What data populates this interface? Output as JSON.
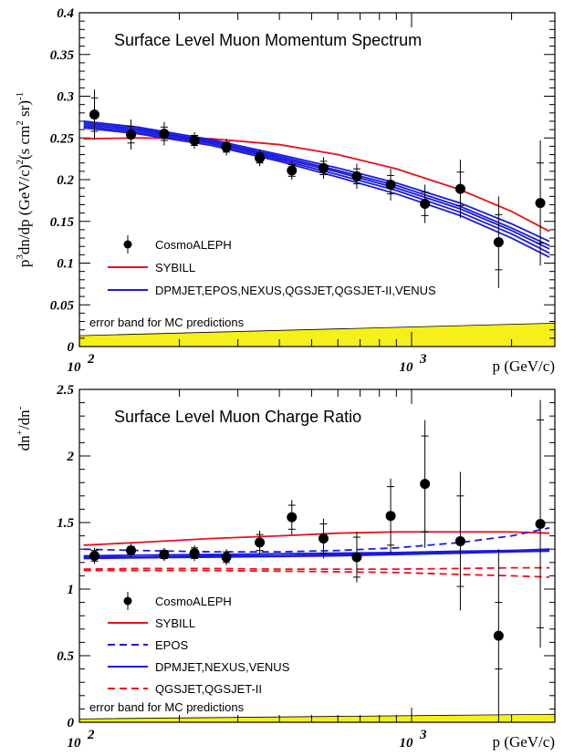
{
  "colors": {
    "data": "#000000",
    "sybill": "#e8101a",
    "blue": "#1a1adf",
    "band": "#f5ef1a"
  },
  "chart_data": [
    {
      "type": "scatter",
      "title": "Surface Level Muon Momentum Spectrum",
      "ylabel_lines": [
        "p",
        "3",
        "dn/dp (GeV/c)",
        "2",
        "(s cm",
        "2",
        " sr)",
        "-1"
      ],
      "xlabel": "p (GeV/c)",
      "xscale": "log",
      "xlim": [
        100,
        2700
      ],
      "ylim": [
        0,
        0.4
      ],
      "yticks": [
        {
          "v": 0,
          "label": "0"
        },
        {
          "v": 0.05,
          "label": "0.05"
        },
        {
          "v": 0.1,
          "label": "0.1"
        },
        {
          "v": 0.15,
          "label": "0.15"
        },
        {
          "v": 0.2,
          "label": "0.2"
        },
        {
          "v": 0.25,
          "label": "0.25"
        },
        {
          "v": 0.3,
          "label": "0.3"
        },
        {
          "v": 0.35,
          "label": "0.35"
        },
        {
          "v": 0.4,
          "label": "0.4"
        }
      ],
      "xticks": [
        {
          "v": 100,
          "base": "10",
          "exp": "2"
        },
        {
          "v": 1000,
          "base": "10",
          "exp": "3"
        }
      ],
      "band_label": "error band for MC predictions",
      "band": {
        "x": [
          100,
          2700
        ],
        "y0": [
          0,
          0
        ],
        "y1": [
          0.013,
          0.028
        ]
      },
      "legend": [
        {
          "label": "CosmoALEPH",
          "kind": "data"
        },
        {
          "label": "SYBILL",
          "kind": "line",
          "color": "#e8101a",
          "dash": false
        },
        {
          "label": "DPMJET,EPOS,NEXUS,QGSJET,QGSJET-II,VENUS",
          "kind": "line",
          "color": "#1a1adf",
          "dash": false
        }
      ],
      "points": {
        "x": [
          111,
          143,
          180,
          222,
          277,
          349,
          436,
          543,
          684,
          865,
          1097,
          1402,
          1828,
          2441
        ],
        "y": [
          0.278,
          0.254,
          0.255,
          0.247,
          0.239,
          0.226,
          0.211,
          0.214,
          0.204,
          0.194,
          0.171,
          0.189,
          0.125,
          0.172
        ],
        "err_stat": [
          0.02,
          0.01,
          0.008,
          0.006,
          0.006,
          0.006,
          0.007,
          0.008,
          0.009,
          0.011,
          0.014,
          0.02,
          0.033,
          0.048
        ],
        "err_tot": [
          0.03,
          0.018,
          0.014,
          0.01,
          0.01,
          0.01,
          0.011,
          0.013,
          0.015,
          0.019,
          0.023,
          0.035,
          0.055,
          0.075
        ]
      },
      "series": [
        {
          "name": "SYBILL",
          "color": "#e8101a",
          "dash": false,
          "x": [
            103,
            150,
            250,
            400,
            600,
            900,
            1400,
            2000,
            2600
          ],
          "y": [
            0.249,
            0.25,
            0.249,
            0.242,
            0.23,
            0.213,
            0.188,
            0.162,
            0.138
          ]
        },
        {
          "name": "",
          "color": "#1a1adf",
          "dash": false,
          "x": [
            103,
            150,
            250,
            400,
            600,
            900,
            1400,
            2000,
            2600
          ],
          "y": [
            0.27,
            0.263,
            0.248,
            0.23,
            0.214,
            0.196,
            0.172,
            0.147,
            0.126
          ]
        },
        {
          "name": "",
          "color": "#1a1adf",
          "dash": false,
          "x": [
            103,
            150,
            250,
            400,
            600,
            900,
            1400,
            2000,
            2600
          ],
          "y": [
            0.268,
            0.261,
            0.246,
            0.228,
            0.211,
            0.193,
            0.168,
            0.142,
            0.121
          ]
        },
        {
          "name": "",
          "color": "#1a1adf",
          "dash": false,
          "x": [
            103,
            150,
            250,
            400,
            600,
            900,
            1400,
            2000,
            2600
          ],
          "y": [
            0.266,
            0.259,
            0.245,
            0.226,
            0.209,
            0.19,
            0.165,
            0.139,
            0.117
          ]
        },
        {
          "name": "",
          "color": "#1a1adf",
          "dash": false,
          "x": [
            103,
            150,
            250,
            400,
            600,
            900,
            1400,
            2000,
            2600
          ],
          "y": [
            0.264,
            0.257,
            0.243,
            0.224,
            0.206,
            0.187,
            0.161,
            0.135,
            0.112
          ]
        },
        {
          "name": "",
          "color": "#1a1adf",
          "dash": false,
          "x": [
            103,
            150,
            250,
            400,
            600,
            900,
            1400,
            2000,
            2600
          ],
          "y": [
            0.262,
            0.255,
            0.241,
            0.222,
            0.203,
            0.183,
            0.157,
            0.13,
            0.107
          ]
        }
      ]
    },
    {
      "type": "scatter",
      "title": "Surface Level Muon Charge Ratio",
      "ylabel_lines": [
        "dn",
        "+",
        "/dn",
        "-"
      ],
      "xlabel": "p (GeV/c)",
      "xscale": "log",
      "xlim": [
        100,
        2700
      ],
      "ylim": [
        0,
        2.5
      ],
      "yticks": [
        {
          "v": 0,
          "label": "0"
        },
        {
          "v": 0.5,
          "label": "0.5"
        },
        {
          "v": 1,
          "label": "1"
        },
        {
          "v": 1.5,
          "label": "1.5"
        },
        {
          "v": 2,
          "label": "2"
        },
        {
          "v": 2.5,
          "label": "2.5"
        }
      ],
      "xticks": [
        {
          "v": 100,
          "base": "10",
          "exp": "2"
        },
        {
          "v": 1000,
          "base": "10",
          "exp": "3"
        }
      ],
      "band_label": "error band for MC predictions",
      "band": {
        "x": [
          100,
          2700
        ],
        "y0": [
          0,
          0
        ],
        "y1": [
          0.025,
          0.06
        ]
      },
      "legend": [
        {
          "label": "CosmoALEPH",
          "kind": "data"
        },
        {
          "label": "SYBILL",
          "kind": "line",
          "color": "#e8101a",
          "dash": false
        },
        {
          "label": "EPOS",
          "kind": "line",
          "color": "#1a1adf",
          "dash": true
        },
        {
          "label": "DPMJET,NEXUS,VENUS",
          "kind": "line",
          "color": "#1a1adf",
          "dash": false
        },
        {
          "label": "QGSJET,QGSJET-II",
          "kind": "line",
          "color": "#e8101a",
          "dash": true
        }
      ],
      "points": {
        "x": [
          111,
          143,
          180,
          222,
          277,
          349,
          436,
          543,
          684,
          865,
          1097,
          1402,
          1828,
          2441
        ],
        "y": [
          1.25,
          1.29,
          1.26,
          1.27,
          1.24,
          1.35,
          1.54,
          1.38,
          1.24,
          1.55,
          1.79,
          1.36,
          0.65,
          1.49
        ],
        "err_stat": [
          0.04,
          0.03,
          0.03,
          0.04,
          0.04,
          0.06,
          0.09,
          0.11,
          0.15,
          0.22,
          0.36,
          0.34,
          0.25,
          0.78
        ],
        "err_tot": [
          0.06,
          0.05,
          0.05,
          0.06,
          0.06,
          0.09,
          0.13,
          0.15,
          0.19,
          0.28,
          0.48,
          0.52,
          0.65,
          0.93
        ]
      },
      "series": [
        {
          "name": "SYBILL",
          "color": "#e8101a",
          "dash": false,
          "x": [
            103,
            150,
            250,
            400,
            600,
            900,
            1400,
            2000,
            2600
          ],
          "y": [
            1.33,
            1.35,
            1.38,
            1.4,
            1.42,
            1.43,
            1.43,
            1.43,
            1.42
          ]
        },
        {
          "name": "EPOS",
          "color": "#1a1adf",
          "dash": true,
          "x": [
            103,
            150,
            250,
            400,
            600,
            900,
            1400,
            2000,
            2600
          ],
          "y": [
            1.3,
            1.29,
            1.28,
            1.28,
            1.29,
            1.31,
            1.35,
            1.4,
            1.46
          ]
        },
        {
          "name": "DPMJET,NEXUS,VENUS",
          "color": "#1a1adf",
          "dash": false,
          "x": [
            103,
            150,
            250,
            400,
            600,
            900,
            1400,
            2000,
            2600
          ],
          "y": [
            1.24,
            1.24,
            1.25,
            1.25,
            1.26,
            1.27,
            1.28,
            1.29,
            1.29
          ]
        },
        {
          "name": "",
          "color": "#1a1adf",
          "dash": false,
          "x": [
            103,
            150,
            250,
            400,
            600,
            900,
            1400,
            2000,
            2600
          ],
          "y": [
            1.23,
            1.235,
            1.24,
            1.245,
            1.25,
            1.26,
            1.27,
            1.28,
            1.285
          ]
        },
        {
          "name": "",
          "color": "#1a1adf",
          "dash": false,
          "x": [
            103,
            150,
            250,
            400,
            600,
            900,
            1400,
            2000,
            2600
          ],
          "y": [
            1.25,
            1.255,
            1.26,
            1.265,
            1.27,
            1.275,
            1.285,
            1.29,
            1.3
          ]
        },
        {
          "name": "QGSJET,QGSJET-II",
          "color": "#e8101a",
          "dash": true,
          "x": [
            103,
            150,
            250,
            400,
            600,
            900,
            1400,
            2000,
            2600
          ],
          "y": [
            1.15,
            1.155,
            1.155,
            1.15,
            1.15,
            1.15,
            1.155,
            1.16,
            1.16
          ]
        },
        {
          "name": "",
          "color": "#e8101a",
          "dash": true,
          "x": [
            103,
            150,
            250,
            400,
            600,
            900,
            1400,
            2000,
            2600
          ],
          "y": [
            1.14,
            1.14,
            1.14,
            1.135,
            1.13,
            1.125,
            1.11,
            1.1,
            1.09
          ]
        }
      ]
    }
  ]
}
